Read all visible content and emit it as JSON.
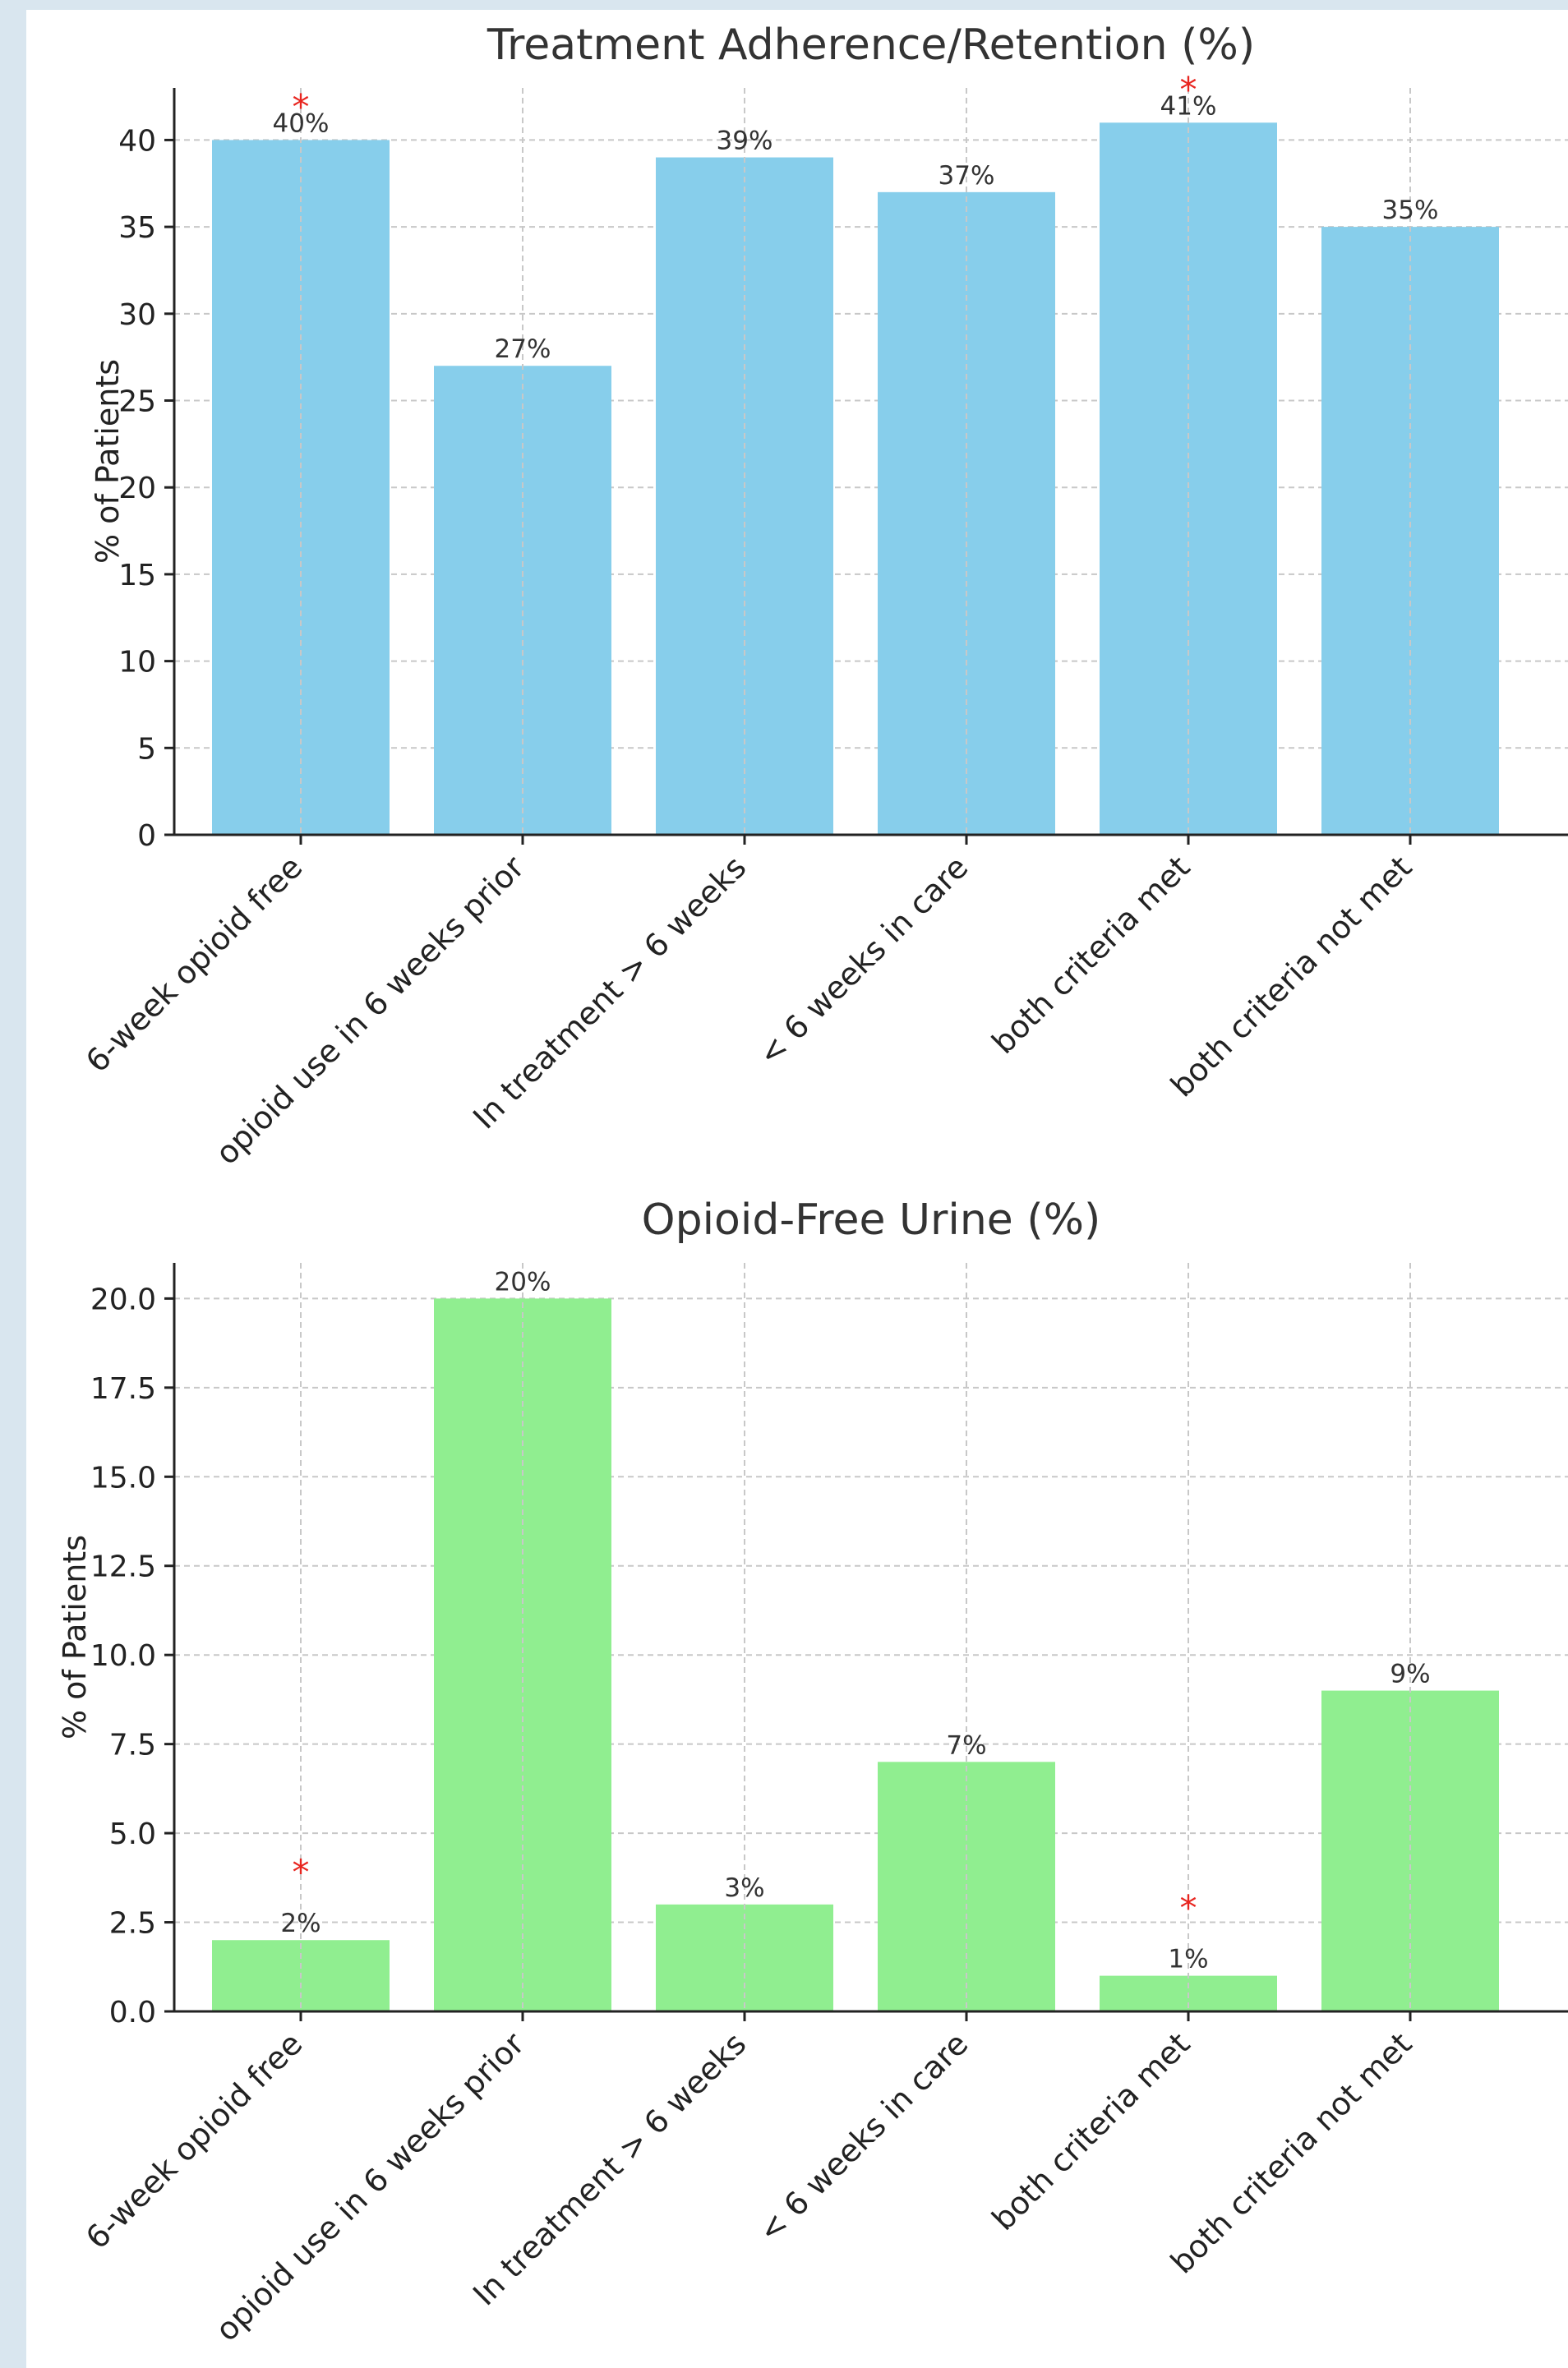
{
  "chart_data": [
    {
      "type": "bar",
      "title": "Treatment Adherence/Retention (%)",
      "ylabel": "% of Patients",
      "xlabel": "",
      "categories": [
        "6-week opioid free",
        "opioid use in 6 weeks prior",
        "In treatment > 6 weeks",
        "< 6 weeks in care",
        "both criteria met",
        "both criteria not met"
      ],
      "values": [
        40,
        27,
        39,
        37,
        41,
        35
      ],
      "value_labels": [
        "40%",
        "27%",
        "39%",
        "37%",
        "41%",
        "35%"
      ],
      "significance_markers": [
        "*",
        "",
        "",
        "",
        "*",
        ""
      ],
      "ylim": [
        0,
        43
      ],
      "yticks": [
        0,
        5,
        10,
        15,
        20,
        25,
        30,
        35,
        40
      ],
      "ytick_labels": [
        "0",
        "5",
        "10",
        "15",
        "20",
        "25",
        "30",
        "35",
        "40"
      ],
      "bar_color": "#87ceeb",
      "marker_color": "#e8251f",
      "grid": true
    },
    {
      "type": "bar",
      "title": "Opioid-Free Urine (%)",
      "ylabel": "% of Patients",
      "xlabel": "",
      "categories": [
        "6-week opioid free",
        "opioid use in 6 weeks prior",
        "In treatment > 6 weeks",
        "< 6 weeks in care",
        "both criteria met",
        "both criteria not met"
      ],
      "values": [
        2,
        20,
        3,
        7,
        1,
        9
      ],
      "value_labels": [
        "2%",
        "20%",
        "3%",
        "7%",
        "1%",
        "9%"
      ],
      "significance_markers": [
        "*",
        "",
        "",
        "",
        "*",
        ""
      ],
      "ylim": [
        0,
        21
      ],
      "yticks": [
        0,
        2.5,
        5,
        7.5,
        10,
        12.5,
        15,
        17.5,
        20
      ],
      "ytick_labels": [
        "0.0",
        "2.5",
        "5.0",
        "7.5",
        "10.0",
        "12.5",
        "15.0",
        "17.5",
        "20.0"
      ],
      "bar_color": "#90ee90",
      "marker_color": "#e8251f",
      "grid": true
    }
  ]
}
